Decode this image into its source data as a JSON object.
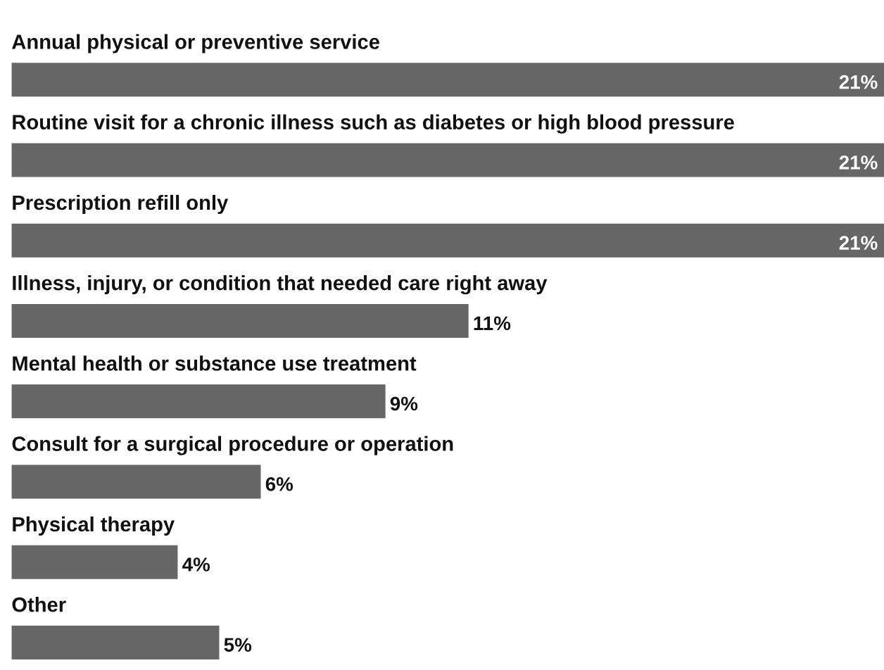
{
  "chart_data": {
    "type": "bar",
    "orientation": "horizontal",
    "categories": [
      "Annual physical or preventive service",
      "Routine visit for a chronic illness such as diabetes or high blood pressure",
      "Prescription refill only",
      "Illness, injury, or condition that needed care right away",
      "Mental health or substance use treatment",
      "Consult for a surgical procedure or operation",
      "Physical therapy",
      "Other"
    ],
    "values": [
      21,
      21,
      21,
      11,
      9,
      6,
      4,
      5
    ],
    "color": "#666666",
    "value_labels": [
      "21%",
      "21%",
      "21%",
      "11%",
      "9%",
      "6%",
      "4%",
      "5%"
    ]
  }
}
